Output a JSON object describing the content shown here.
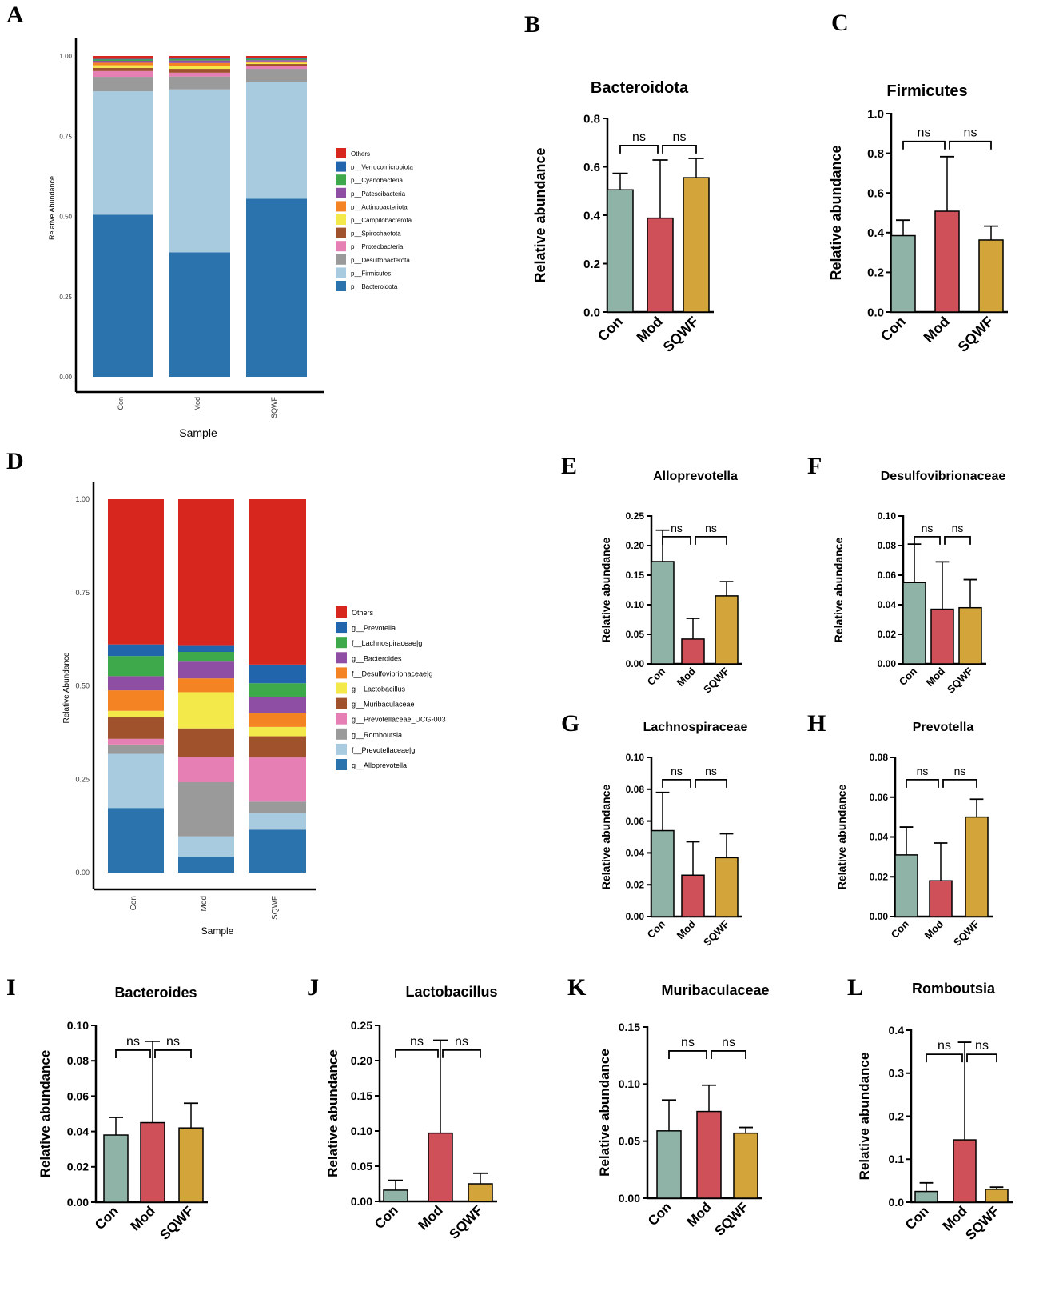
{
  "panel_letters": [
    "A",
    "B",
    "C",
    "D",
    "E",
    "F",
    "G",
    "H",
    "I",
    "J",
    "K",
    "L"
  ],
  "colors": {
    "Con": "#8fb3a7",
    "Mod": "#d0505a",
    "SQWF": "#d3a43a",
    "error": "#000000"
  },
  "chart_data": [
    {
      "id": "A",
      "type": "bar",
      "stacked": true,
      "title": "",
      "xlabel": "Sample",
      "ylabel": "Relative Abundance",
      "categories": [
        "Con",
        "Mod",
        "SQWF"
      ],
      "yticks": [
        "0.00",
        "0.25",
        "0.50",
        "0.75",
        "1.00"
      ],
      "ylim": [
        0,
        1
      ],
      "legend_position": "right",
      "series": [
        {
          "name": "p__Bacteroidota",
          "color": "#2a73ad",
          "values": [
            0.505,
            0.388,
            0.555
          ]
        },
        {
          "name": "p__Firmicutes",
          "color": "#a8cbe0",
          "values": [
            0.385,
            0.508,
            0.363
          ]
        },
        {
          "name": "p__Desulfobacterota",
          "color": "#9a9a9a",
          "values": [
            0.045,
            0.04,
            0.042
          ]
        },
        {
          "name": "p__Proteobacteria",
          "color": "#e57fb4",
          "values": [
            0.018,
            0.012,
            0.01
          ]
        },
        {
          "name": "p__Spirochaetota",
          "color": "#a0522d",
          "values": [
            0.01,
            0.012,
            0.005
          ]
        },
        {
          "name": "p__Campilobacterota",
          "color": "#f3e94b",
          "values": [
            0.008,
            0.01,
            0.004
          ]
        },
        {
          "name": "p__Actinobacteriota",
          "color": "#f48323",
          "values": [
            0.008,
            0.008,
            0.004
          ]
        },
        {
          "name": "p__Patescibacteria",
          "color": "#8e4ea3",
          "values": [
            0.006,
            0.008,
            0.004
          ]
        },
        {
          "name": "p__Cyanobacteria",
          "color": "#3ea94a",
          "values": [
            0.004,
            0.004,
            0.004
          ]
        },
        {
          "name": "p__Verrucomicrobiota",
          "color": "#2166ac",
          "values": [
            0.002,
            0.002,
            0.002
          ]
        },
        {
          "name": "Others",
          "color": "#d7261e",
          "values": [
            0.009,
            0.008,
            0.007
          ]
        }
      ]
    },
    {
      "id": "D",
      "type": "bar",
      "stacked": true,
      "title": "",
      "xlabel": "Sample",
      "ylabel": "Relative Abundance",
      "categories": [
        "Con",
        "Mod",
        "SQWF"
      ],
      "yticks": [
        "0.00",
        "0.25",
        "0.50",
        "0.75",
        "1.00"
      ],
      "ylim": [
        0,
        1
      ],
      "legend_position": "right",
      "series": [
        {
          "name": "g__Alloprevotella",
          "color": "#2a73ad",
          "values": [
            0.173,
            0.042,
            0.115
          ]
        },
        {
          "name": "f__Prevotellaceae|g",
          "color": "#a8cbe0",
          "values": [
            0.145,
            0.055,
            0.045
          ]
        },
        {
          "name": "g__Romboutsia",
          "color": "#9a9a9a",
          "values": [
            0.025,
            0.145,
            0.03
          ]
        },
        {
          "name": "g__Prevotellaceae_UCG-003",
          "color": "#e57fb4",
          "values": [
            0.015,
            0.068,
            0.118
          ]
        },
        {
          "name": "g__Muribaculaceae",
          "color": "#a0522d",
          "values": [
            0.059,
            0.076,
            0.057
          ]
        },
        {
          "name": "g__Lactobacillus",
          "color": "#f3e94b",
          "values": [
            0.016,
            0.097,
            0.025
          ]
        },
        {
          "name": "f__Desulfovibrionaceae|g",
          "color": "#f48323",
          "values": [
            0.055,
            0.037,
            0.038
          ]
        },
        {
          "name": "g__Bacteroides",
          "color": "#8e4ea3",
          "values": [
            0.038,
            0.045,
            0.042
          ]
        },
        {
          "name": "f__Lachnospiraceae|g",
          "color": "#3ea94a",
          "values": [
            0.054,
            0.026,
            0.037
          ]
        },
        {
          "name": "g__Prevotella",
          "color": "#2166ac",
          "values": [
            0.031,
            0.018,
            0.05
          ]
        },
        {
          "name": "Others",
          "color": "#d7261e",
          "values": [
            0.389,
            0.391,
            0.443
          ]
        }
      ]
    },
    {
      "id": "B",
      "type": "bar",
      "title": "Bacteroidota",
      "ylabel": "Relative abundance",
      "categories": [
        "Con",
        "Mod",
        "SQWF"
      ],
      "values": [
        0.505,
        0.388,
        0.555
      ],
      "errors": [
        0.068,
        0.24,
        0.08
      ],
      "ylim": [
        0,
        0.8
      ],
      "yticks": [
        "0.0",
        "0.2",
        "0.4",
        "0.6",
        "0.8"
      ],
      "sig": [
        "ns",
        "ns"
      ]
    },
    {
      "id": "C",
      "type": "bar",
      "title": "Firmicutes",
      "ylabel": "Relative abundance",
      "categories": [
        "Con",
        "Mod",
        "SQWF"
      ],
      "values": [
        0.385,
        0.508,
        0.363
      ],
      "errors": [
        0.078,
        0.275,
        0.07
      ],
      "ylim": [
        0,
        1.0
      ],
      "yticks": [
        "0.0",
        "0.2",
        "0.4",
        "0.6",
        "0.8",
        "1.0"
      ],
      "sig": [
        "ns",
        "ns"
      ]
    },
    {
      "id": "E",
      "type": "bar",
      "title": "Alloprevotella",
      "ylabel": "Relative abundance",
      "categories": [
        "Con",
        "Mod",
        "SQWF"
      ],
      "values": [
        0.173,
        0.042,
        0.115
      ],
      "errors": [
        0.053,
        0.035,
        0.024
      ],
      "ylim": [
        0,
        0.25
      ],
      "yticks": [
        "0.00",
        "0.05",
        "0.10",
        "0.15",
        "0.20",
        "0.25"
      ],
      "sig": [
        "ns",
        "ns"
      ]
    },
    {
      "id": "F",
      "type": "bar",
      "title": "Desulfovibrionaceae",
      "ylabel": "Relative abundance",
      "categories": [
        "Con",
        "Mod",
        "SQWF"
      ],
      "values": [
        0.055,
        0.037,
        0.038
      ],
      "errors": [
        0.026,
        0.032,
        0.019
      ],
      "ylim": [
        0,
        0.1
      ],
      "yticks": [
        "0.00",
        "0.02",
        "0.04",
        "0.06",
        "0.08",
        "0.10"
      ],
      "sig": [
        "ns",
        "ns"
      ]
    },
    {
      "id": "G",
      "type": "bar",
      "title": "Lachnospiraceae",
      "ylabel": "Relative abundance",
      "categories": [
        "Con",
        "Mod",
        "SQWF"
      ],
      "values": [
        0.054,
        0.026,
        0.037
      ],
      "errors": [
        0.024,
        0.021,
        0.015
      ],
      "ylim": [
        0,
        0.1
      ],
      "yticks": [
        "0.00",
        "0.02",
        "0.04",
        "0.06",
        "0.08",
        "0.10"
      ],
      "sig": [
        "ns",
        "ns"
      ]
    },
    {
      "id": "H",
      "type": "bar",
      "title": "Prevotella",
      "ylabel": "Relative abundance",
      "categories": [
        "Con",
        "Mod",
        "SQWF"
      ],
      "values": [
        0.031,
        0.018,
        0.05
      ],
      "errors": [
        0.014,
        0.019,
        0.009
      ],
      "ylim": [
        0,
        0.08
      ],
      "yticks": [
        "0.00",
        "0.02",
        "0.04",
        "0.06",
        "0.08"
      ],
      "sig": [
        "ns",
        "ns"
      ]
    },
    {
      "id": "I",
      "type": "bar",
      "title": "Bacteroides",
      "ylabel": "Relative abundance",
      "categories": [
        "Con",
        "Mod",
        "SQWF"
      ],
      "values": [
        0.038,
        0.045,
        0.042
      ],
      "errors": [
        0.01,
        0.046,
        0.014
      ],
      "ylim": [
        0,
        0.1
      ],
      "yticks": [
        "0.00",
        "0.02",
        "0.04",
        "0.06",
        "0.08",
        "0.10"
      ],
      "sig": [
        "ns",
        "ns"
      ]
    },
    {
      "id": "J",
      "type": "bar",
      "title": "Lactobacillus",
      "ylabel": "Relative abundance",
      "categories": [
        "Con",
        "Mod",
        "SQWF"
      ],
      "values": [
        0.016,
        0.097,
        0.025
      ],
      "errors": [
        0.014,
        0.132,
        0.015
      ],
      "ylim": [
        0,
        0.25
      ],
      "yticks": [
        "0.00",
        "0.05",
        "0.10",
        "0.15",
        "0.20",
        "0.25"
      ],
      "sig": [
        "ns",
        "ns"
      ]
    },
    {
      "id": "K",
      "type": "bar",
      "title": "Muribaculaceae",
      "ylabel": "Relative abundance",
      "categories": [
        "Con",
        "Mod",
        "SQWF"
      ],
      "values": [
        0.059,
        0.076,
        0.057
      ],
      "errors": [
        0.027,
        0.023,
        0.005
      ],
      "ylim": [
        0,
        0.15
      ],
      "yticks": [
        "0.00",
        "0.05",
        "0.10",
        "0.15"
      ],
      "sig": [
        "ns",
        "ns"
      ]
    },
    {
      "id": "L",
      "type": "bar",
      "title": "Romboutsia",
      "ylabel": "Relative abundance",
      "categories": [
        "Con",
        "Mod",
        "SQWF"
      ],
      "values": [
        0.025,
        0.145,
        0.03
      ],
      "errors": [
        0.02,
        0.227,
        0.005
      ],
      "ylim": [
        0,
        0.4
      ],
      "yticks": [
        "0.0",
        "0.1",
        "0.2",
        "0.3",
        "0.4"
      ],
      "sig": [
        "ns",
        "ns"
      ]
    }
  ]
}
